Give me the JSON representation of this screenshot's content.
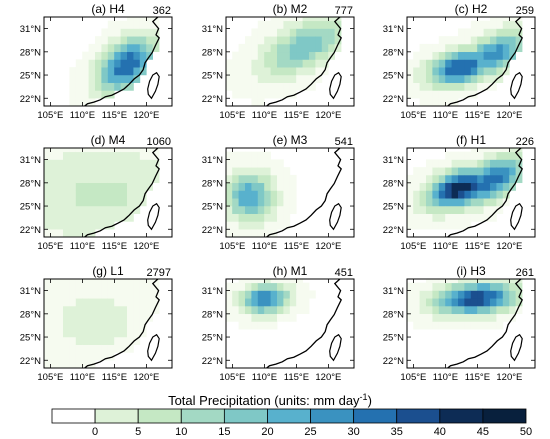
{
  "figure": {
    "colorbar": {
      "title": "Total Precipitation (units: mm day",
      "title_superscript": "-1",
      "title_close": ")",
      "ticks": [
        "0",
        "5",
        "10",
        "15",
        "20",
        "25",
        "30",
        "35",
        "40",
        "45",
        "50"
      ],
      "levels": [
        0,
        5,
        10,
        15,
        20,
        25,
        30,
        35,
        40,
        45,
        50
      ],
      "colors": [
        "#ffffff",
        "#f6fbf0",
        "#def2d8",
        "#c5e8c4",
        "#a3d9c4",
        "#7fc8c6",
        "#58b1cd",
        "#3a92c0",
        "#2471b0",
        "#1b4f8f",
        "#0d2c55",
        "#08203d"
      ]
    },
    "map_extent": {
      "lon": [
        104,
        124
      ],
      "lat": [
        21,
        32.5
      ]
    },
    "axes": {
      "lat_ticks": [
        {
          "value": 31,
          "label": "31°N"
        },
        {
          "value": 28,
          "label": "28°N"
        },
        {
          "value": 25,
          "label": "25°N"
        },
        {
          "value": 22,
          "label": "22°N"
        }
      ],
      "lon_ticks": [
        {
          "value": 105,
          "label": "105°E"
        },
        {
          "value": 110,
          "label": "110°E"
        },
        {
          "value": 115,
          "label": "115°E"
        },
        {
          "value": 120,
          "label": "120°E"
        }
      ]
    },
    "panels": [
      {
        "title": "(a) H4",
        "count": "362",
        "rain": [
          {
            "lon": 117,
            "lat": 26.3,
            "peak": 40,
            "sx": 3.4,
            "sy": 2.0,
            "rot": 30
          }
        ]
      },
      {
        "title": "(b) M2",
        "count": "777",
        "rain": [
          {
            "lon": 116.5,
            "lat": 28.8,
            "peak": 24,
            "sx": 5.0,
            "sy": 2.1,
            "rot": 22
          }
        ]
      },
      {
        "title": "(c) H2",
        "count": "259",
        "rain": [
          {
            "lon": 112.5,
            "lat": 26.0,
            "peak": 42,
            "sx": 3.6,
            "sy": 1.5,
            "rot": 12
          },
          {
            "lon": 117.5,
            "lat": 27.6,
            "peak": 33,
            "sx": 4.2,
            "sy": 1.7,
            "rot": 22
          }
        ]
      },
      {
        "title": "(d) M4",
        "count": "1060",
        "rain": [
          {
            "lon": 113,
            "lat": 26.5,
            "peak": 11,
            "sx": 10,
            "sy": 4.5,
            "rot": 0
          }
        ]
      },
      {
        "title": "(e) M3",
        "count": "541",
        "rain": [
          {
            "lon": 107.8,
            "lat": 26.2,
            "peak": 30,
            "sx": 2.6,
            "sy": 2.2,
            "rot": 0
          }
        ]
      },
      {
        "title": "(f) H1",
        "count": "226",
        "rain": [
          {
            "lon": 112.5,
            "lat": 27.3,
            "peak": 50,
            "sx": 3.7,
            "sy": 1.6,
            "rot": 14
          },
          {
            "lon": 117,
            "lat": 28.3,
            "peak": 40,
            "sx": 4.0,
            "sy": 1.7,
            "rot": 20
          }
        ]
      },
      {
        "title": "(g) L1",
        "count": "2797",
        "rain": [
          {
            "lon": 112,
            "lat": 27,
            "peak": 6,
            "sx": 9,
            "sy": 5,
            "rot": 0
          }
        ]
      },
      {
        "title": "(h) M1",
        "count": "451",
        "rain": [
          {
            "lon": 110.2,
            "lat": 29.9,
            "peak": 36,
            "sx": 2.6,
            "sy": 1.3,
            "rot": 5
          }
        ]
      },
      {
        "title": "(i) H3",
        "count": "261",
        "rain": [
          {
            "lon": 114.8,
            "lat": 30.0,
            "peak": 44,
            "sx": 4.4,
            "sy": 1.4,
            "rot": 5
          }
        ]
      }
    ]
  }
}
